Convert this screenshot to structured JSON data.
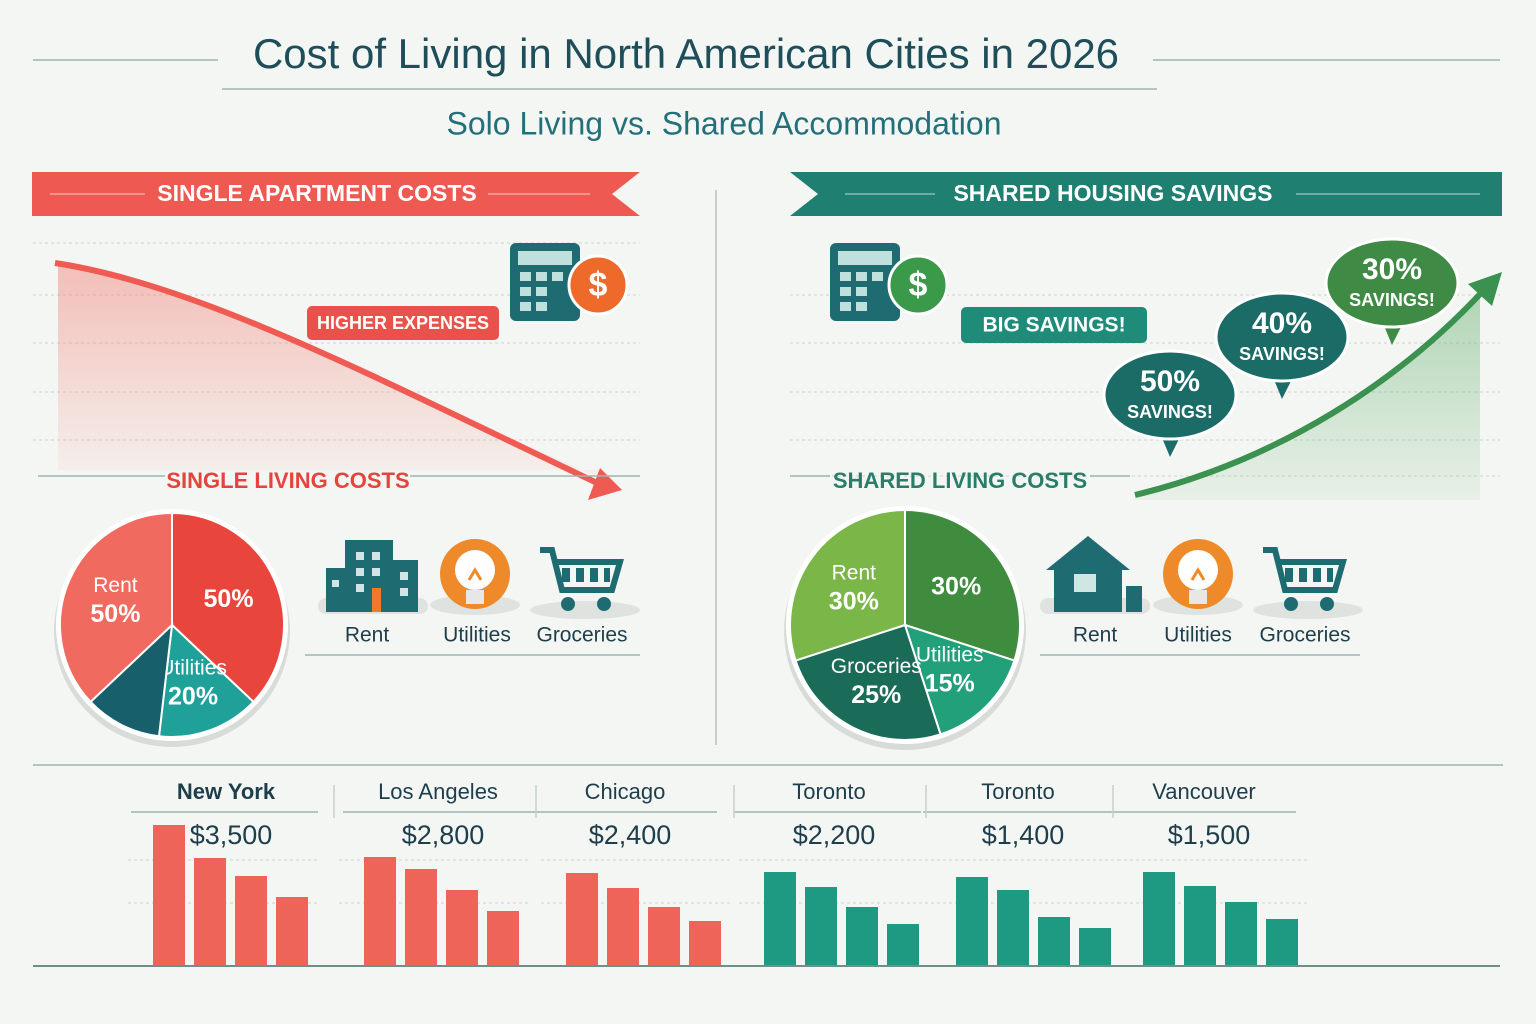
{
  "title": "Cost of Living in North American Cities in 2026",
  "subtitle": "Solo Living vs. Shared Accommodation",
  "single": {
    "banner": "SINGLE APARTMENT COSTS",
    "badge": "HIGHER EXPENSES",
    "section": "SINGLE LIVING COSTS",
    "pie": [
      {
        "value": 50,
        "value_label": "50%",
        "color": "#e8463c"
      },
      {
        "name": "Utilities",
        "value": 20,
        "value_label": "20%",
        "color": "#1fa19a"
      },
      {
        "value": 15,
        "color": "#17606b"
      },
      {
        "name": "Rent",
        "value": 50,
        "value_label": "50%",
        "color": "#f06a5f"
      }
    ],
    "icons": [
      "Rent",
      "Utilities",
      "Groceries"
    ]
  },
  "shared": {
    "banner": "SHARED HOUSING SAVINGS",
    "badge": "BIG SAVINGS!",
    "section": "SHARED LIVING COSTS",
    "bubbles": [
      {
        "label": "50%",
        "text": "SAVINGS!"
      },
      {
        "label": "40%",
        "text": "SAVINGS!"
      },
      {
        "label": "30%",
        "text": "SAVINGS!"
      }
    ],
    "pie": [
      {
        "value": 30,
        "value_label": "30%",
        "color": "#3f8c3f"
      },
      {
        "name": "Utilities",
        "value": 15,
        "value_label": "15%",
        "color": "#22a07a"
      },
      {
        "name": "Groceries",
        "value": 25,
        "value_label": "25%",
        "color": "#1a6b57"
      },
      {
        "name": "Rent",
        "value": 30,
        "value_label": "30%",
        "color": "#7ab648"
      }
    ],
    "icons": [
      "Rent",
      "Utilities",
      "Groceries"
    ]
  },
  "cities": [
    {
      "name": "New York",
      "amount": "$3,500",
      "bars": [
        140,
        107,
        89,
        68
      ],
      "color": "#ef6459"
    },
    {
      "name": "Los Angeles",
      "amount": "$2,800",
      "bars": [
        108,
        96,
        75,
        54
      ],
      "color": "#ef6459"
    },
    {
      "name": "Chicago",
      "amount": "$2,400",
      "bars": [
        92,
        77,
        58,
        44
      ],
      "color": "#ef6459"
    },
    {
      "name": "Toronto",
      "amount": "$2,200",
      "bars": [
        93,
        78,
        58,
        41
      ],
      "color": "#1f9a82"
    },
    {
      "name": "Toronto",
      "amount": "$1,400",
      "bars": [
        88,
        75,
        48,
        37
      ],
      "color": "#1f9a82"
    },
    {
      "name": "Vancouver",
      "amount": "$1,500",
      "bars": [
        93,
        79,
        63,
        46
      ],
      "color": "#1f9a82"
    }
  ]
}
